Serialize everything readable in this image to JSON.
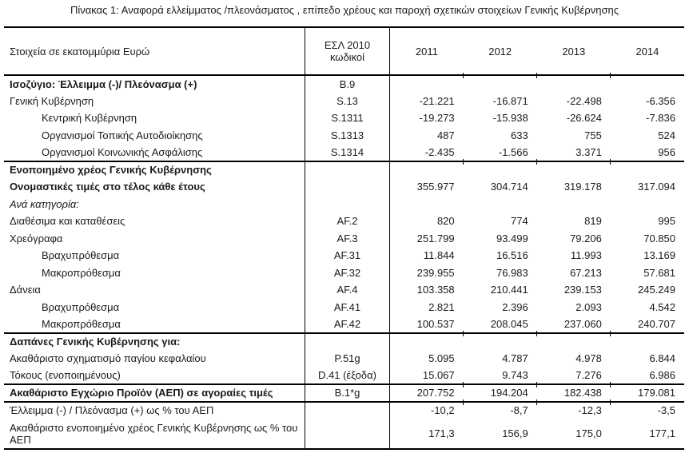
{
  "title": "Πίνακας 1: Αναφορά ελλείμματος /πλεονάσματος , επίπεδο χρέους και παροχή σχετικών στοιχείων Γενικής Κυβέρνησης",
  "colors": {
    "background": "#ffffff",
    "text": "#1a1a1a",
    "border": "#000000"
  },
  "table": {
    "header": {
      "label": "Στοιχεία σε εκατομμύρια Ευρώ",
      "code": "ΕΣΛ 2010 κωδικοί",
      "years": [
        "2011",
        "2012",
        "2013",
        "2014"
      ]
    },
    "rows": [
      {
        "label": "Ισοζύγιο: Έλλειμμα (-)/ Πλεόνασμα (+)",
        "code": "B.9",
        "values": [
          "",
          "",
          "",
          ""
        ]
      },
      {
        "label": "Γενική Κυβέρνηση",
        "code": "S.13",
        "values": [
          "-21.221",
          "-16.871",
          "-22.498",
          "-6.356"
        ]
      },
      {
        "label": "Κεντρική Κυβέρνηση",
        "code": "S.1311",
        "values": [
          "-19.273",
          "-15.938",
          "-26.624",
          "-7.836"
        ]
      },
      {
        "label": "Οργανισμοί Τοπικής Αυτοδιοίκησης",
        "code": "S.1313",
        "values": [
          "487",
          "633",
          "755",
          "524"
        ]
      },
      {
        "label": "Οργανισμοί Κοινωνικής Ασφάλισης",
        "code": "S.1314",
        "values": [
          "-2.435",
          "-1.566",
          "3.371",
          "956"
        ]
      },
      {
        "label": "Ενοποιημένο χρέος Γενικής Κυβέρνησης",
        "code": "",
        "values": [
          "",
          "",
          "",
          ""
        ]
      },
      {
        "label": "Ονομαστικές τιμές στο τέλος κάθε έτους",
        "code": "",
        "values": [
          "355.977",
          "304.714",
          "319.178",
          "317.094"
        ]
      },
      {
        "label": "Ανά κατηγορία:",
        "code": "",
        "values": [
          "",
          "",
          "",
          ""
        ]
      },
      {
        "label": "Διαθέσιμα και καταθέσεις",
        "code": "AF.2",
        "values": [
          "820",
          "774",
          "819",
          "995"
        ]
      },
      {
        "label": "Χρεόγραφα",
        "code": "AF.3",
        "values": [
          "251.799",
          "93.499",
          "79.206",
          "70.850"
        ]
      },
      {
        "label": "Βραχυπρόθεσμα",
        "code": "AF.31",
        "values": [
          "11.844",
          "16.516",
          "11.993",
          "13.169"
        ]
      },
      {
        "label": "Μακροπρόθεσμα",
        "code": "AF.32",
        "values": [
          "239.955",
          "76.983",
          "67.213",
          "57.681"
        ]
      },
      {
        "label": "Δάνεια",
        "code": "AF.4",
        "values": [
          "103.358",
          "210.441",
          "239.153",
          "245.249"
        ]
      },
      {
        "label": "Βραχυπρόθεσμα",
        "code": "AF.41",
        "values": [
          "2.821",
          "2.396",
          "2.093",
          "4.542"
        ]
      },
      {
        "label": "Μακροπρόθεσμα",
        "code": "AF.42",
        "values": [
          "100.537",
          "208.045",
          "237.060",
          "240.707"
        ]
      },
      {
        "label": "Δαπάνες Γενικής Κυβέρνησης για:",
        "code": "",
        "values": [
          "",
          "",
          "",
          ""
        ]
      },
      {
        "label": "Ακαθάριστο σχηματισμό παγίου κεφαλαίου",
        "code": "P.51g",
        "values": [
          "5.095",
          "4.787",
          "4.978",
          "6.844"
        ]
      },
      {
        "label": "Τόκους (ενοποιημένους)",
        "code": "D.41 (έξοδα)",
        "values": [
          "15.067",
          "9.743",
          "7.276",
          "6.986"
        ]
      },
      {
        "label": "Ακαθάριστο Εγχώριο Προϊόν (ΑΕΠ) σε αγοραίες τιμές",
        "code": "B.1*g",
        "values": [
          "207.752",
          "194.204",
          "182.438",
          "179.081"
        ]
      },
      {
        "label": "Έλλειμμα (-) / Πλεόνασμα (+) ως % του ΑΕΠ",
        "code": "",
        "values": [
          "-10,2",
          "-8,7",
          "-12,3",
          "-3,5"
        ]
      },
      {
        "label": "Ακαθάριστο ενοποιημένο χρέος Γενικής Κυβέρνησης ως % του ΑΕΠ",
        "code": "",
        "values": [
          "171,3",
          "156,9",
          "175,0",
          "177,1"
        ]
      }
    ]
  }
}
